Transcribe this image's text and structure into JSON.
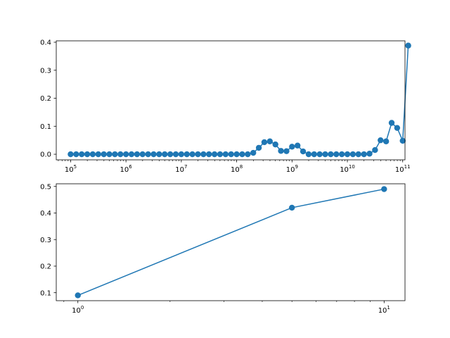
{
  "chart_data": [
    {
      "type": "line",
      "title": "",
      "xlabel": "",
      "ylabel": "",
      "x_scale": "log",
      "xlim": [
        55000,
        110000000000
      ],
      "ylim": [
        -0.02,
        0.405
      ],
      "grid": false,
      "legend": "none",
      "marker": "circle",
      "color": "#1f77b4",
      "x_ticks": [
        {
          "value": 100000,
          "base": "10",
          "exp": "5"
        },
        {
          "value": 1000000,
          "base": "10",
          "exp": "6"
        },
        {
          "value": 10000000,
          "base": "10",
          "exp": "7"
        },
        {
          "value": 100000000,
          "base": "10",
          "exp": "8"
        },
        {
          "value": 1000000000,
          "base": "10",
          "exp": "9"
        },
        {
          "value": 10000000000,
          "base": "10",
          "exp": "10"
        },
        {
          "value": 100000000000,
          "base": "10",
          "exp": "11"
        }
      ],
      "y_ticks": [
        {
          "value": 0.0,
          "label": "0.0"
        },
        {
          "value": 0.1,
          "label": "0.1"
        },
        {
          "value": 0.2,
          "label": "0.2"
        },
        {
          "value": 0.3,
          "label": "0.3"
        },
        {
          "value": 0.4,
          "label": "0.4"
        }
      ],
      "x_log_start": 5,
      "x_log_step": 0.1,
      "y": [
        0,
        0,
        0,
        0,
        0,
        0,
        0,
        0,
        0,
        0,
        0,
        0,
        0,
        0,
        0,
        0,
        0,
        0,
        0,
        0,
        0,
        0,
        0,
        0,
        0,
        0,
        0,
        0,
        0,
        0,
        0,
        0,
        0,
        0.005,
        0.023,
        0.043,
        0.046,
        0.035,
        0.012,
        0.011,
        0.027,
        0.031,
        0.01,
        0,
        0,
        0,
        0,
        0,
        0,
        0,
        0,
        0,
        0,
        0,
        0.002,
        0.015,
        0.05,
        0.046,
        0.112,
        0.094,
        0.048,
        0.388
      ]
    },
    {
      "type": "line",
      "title": "",
      "xlabel": "",
      "ylabel": "",
      "x_scale": "log",
      "xlim": [
        0.85,
        11.7
      ],
      "ylim": [
        0.07,
        0.51
      ],
      "grid": false,
      "legend": "none",
      "marker": "circle",
      "color": "#1f77b4",
      "x_ticks": [
        {
          "value": 1,
          "base": "10",
          "exp": "0"
        },
        {
          "value": 10,
          "base": "10",
          "exp": "1"
        }
      ],
      "y_ticks": [
        {
          "value": 0.1,
          "label": "0.1"
        },
        {
          "value": 0.2,
          "label": "0.2"
        },
        {
          "value": 0.3,
          "label": "0.3"
        },
        {
          "value": 0.4,
          "label": "0.4"
        },
        {
          "value": 0.5,
          "label": "0.5"
        }
      ],
      "x": [
        1,
        5,
        10
      ],
      "y": [
        0.09,
        0.42,
        0.49
      ]
    }
  ]
}
